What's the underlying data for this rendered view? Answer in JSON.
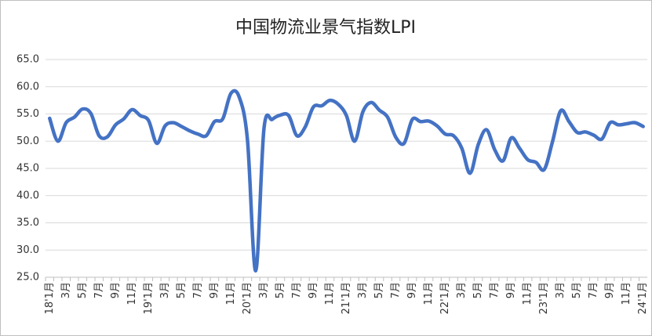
{
  "chart_data": {
    "type": "line",
    "title": "中国物流业景气指数LPI",
    "categories": [
      "18'1月",
      null,
      "3月",
      null,
      "5月",
      null,
      "7月",
      null,
      "9月",
      null,
      "11月",
      null,
      "19'1月",
      null,
      "3月",
      null,
      "5月",
      null,
      "7月",
      null,
      "9月",
      null,
      "11月",
      null,
      "20'1月",
      null,
      "3月",
      null,
      "5月",
      null,
      "7月",
      null,
      "9月",
      null,
      "11月",
      null,
      "21'1月",
      null,
      "3月",
      null,
      "5月",
      null,
      "7月",
      null,
      "9月",
      null,
      "11月",
      null,
      "22'1月",
      null,
      "3月",
      null,
      "5月",
      null,
      "7月",
      null,
      "9月",
      null,
      "11月",
      null,
      "23'1月",
      null,
      "3月",
      null,
      "5月",
      null,
      "7月",
      null,
      "9月",
      null,
      "11月",
      null,
      "24'1月"
    ],
    "series": [
      {
        "name": "LPI",
        "color": "#4472c4",
        "values": [
          54.2,
          50.0,
          53.4,
          54.4,
          55.9,
          55.1,
          51.0,
          50.8,
          53.0,
          54.1,
          55.8,
          54.7,
          53.8,
          49.6,
          52.8,
          53.4,
          52.7,
          51.9,
          51.3,
          51.0,
          53.6,
          54.1,
          58.8,
          58.1,
          50.2,
          26.2,
          52.3,
          54.0,
          54.8,
          54.7,
          51.0,
          52.6,
          56.3,
          56.5,
          57.5,
          56.8,
          54.7,
          50.0,
          55.4,
          57.1,
          55.7,
          54.4,
          50.7,
          49.6,
          54.0,
          53.6,
          53.7,
          52.8,
          51.3,
          51.0,
          48.7,
          44.1,
          49.4,
          52.1,
          48.4,
          46.4,
          50.6,
          48.7,
          46.6,
          46.1,
          44.8,
          49.9,
          55.6,
          53.6,
          51.6,
          51.7,
          51.1,
          50.4,
          53.4,
          53.0,
          53.2,
          53.4,
          52.7
        ]
      }
    ],
    "ylim": [
      25,
      65
    ],
    "yticks": [
      {
        "value": 25,
        "label": "25.0"
      },
      {
        "value": 30,
        "label": "30.0"
      },
      {
        "value": 35,
        "label": "35.0"
      },
      {
        "value": 40,
        "label": "40.0"
      },
      {
        "value": 45,
        "label": "45.0"
      },
      {
        "value": 50,
        "label": "50.0"
      },
      {
        "value": 55,
        "label": "55.0"
      },
      {
        "value": 60,
        "label": "60.0"
      },
      {
        "value": 65,
        "label": "65.0"
      }
    ],
    "grid": true
  }
}
